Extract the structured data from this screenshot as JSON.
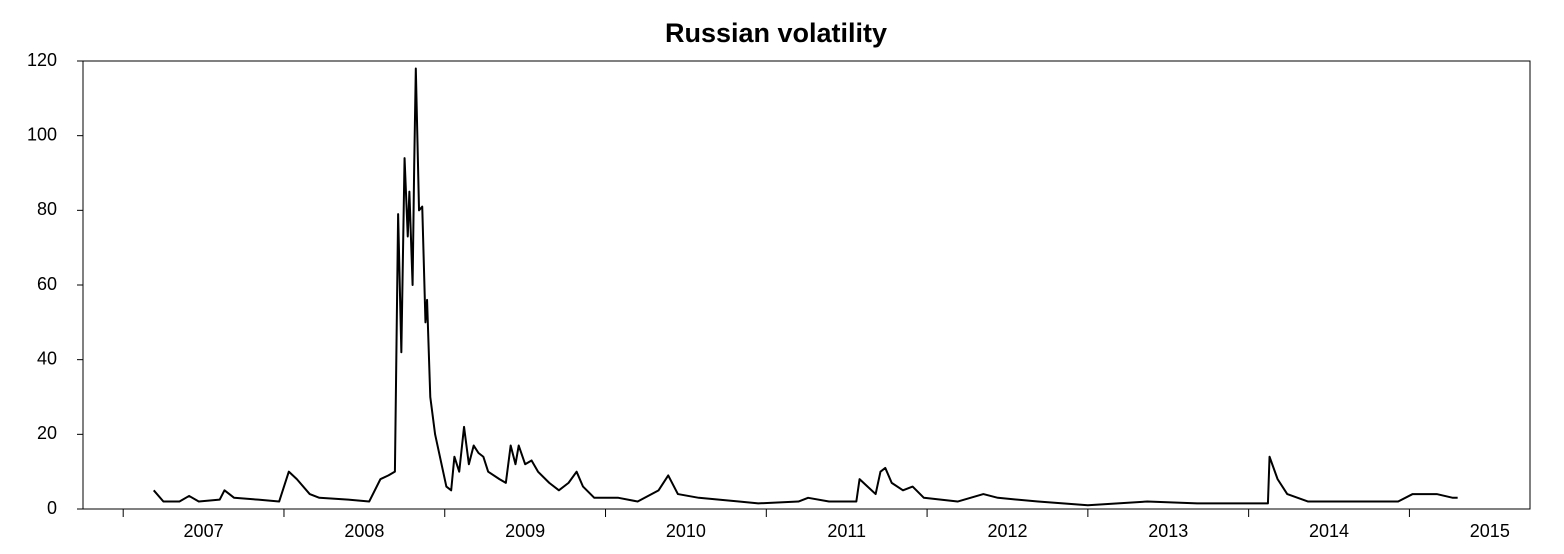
{
  "chart_data": {
    "type": "line",
    "title": "Russian volatility",
    "xlim": [
      2006.75,
      2015.75
    ],
    "xticks": [
      2007,
      2008,
      2009,
      2010,
      2011,
      2012,
      2013,
      2014,
      2015
    ],
    "ylim": [
      0,
      120
    ],
    "yticks": [
      0,
      20,
      40,
      60,
      80,
      100,
      120
    ],
    "grid": false,
    "series": [
      {
        "color": "#000000",
        "x": [
          2007.19,
          2007.25,
          2007.35,
          2007.41,
          2007.47,
          2007.6,
          2007.63,
          2007.69,
          2007.84,
          2007.97,
          2008.03,
          2008.08,
          2008.16,
          2008.22,
          2008.4,
          2008.53,
          2008.6,
          2008.65,
          2008.69,
          2008.71,
          2008.73,
          2008.75,
          2008.77,
          2008.78,
          2008.8,
          2008.81,
          2008.82,
          2008.84,
          2008.86,
          2008.88,
          2008.89,
          2008.91,
          2008.94,
          2008.98,
          2009.01,
          2009.04,
          2009.06,
          2009.09,
          2009.12,
          2009.15,
          2009.18,
          2009.21,
          2009.24,
          2009.27,
          2009.34,
          2009.38,
          2009.41,
          2009.44,
          2009.46,
          2009.5,
          2009.54,
          2009.58,
          2009.65,
          2009.71,
          2009.77,
          2009.82,
          2009.86,
          2009.93,
          2010.08,
          2010.2,
          2010.33,
          2010.39,
          2010.45,
          2010.58,
          2010.83,
          2010.95,
          2011.2,
          2011.26,
          2011.39,
          2011.56,
          2011.58,
          2011.63,
          2011.68,
          2011.71,
          2011.74,
          2011.78,
          2011.85,
          2011.91,
          2011.98,
          2012.19,
          2012.35,
          2012.44,
          2012.69,
          2013.0,
          2013.37,
          2013.68,
          2014.12,
          2014.13,
          2014.18,
          2014.24,
          2014.37,
          2014.61,
          2014.93,
          2015.02,
          2015.08,
          2015.17,
          2015.27,
          2015.3
        ],
        "values": [
          5,
          2,
          2,
          3.5,
          2,
          2.5,
          5,
          3,
          2.5,
          2,
          10,
          8,
          4,
          3,
          2.5,
          2,
          8,
          9,
          10,
          79,
          42,
          94,
          73,
          85,
          60,
          92,
          118,
          80,
          81,
          50,
          56,
          30,
          20,
          12,
          6,
          5,
          14,
          10,
          22,
          12,
          17,
          15,
          14,
          10,
          8,
          7,
          17,
          12,
          17,
          12,
          13,
          10,
          7,
          5,
          7,
          10,
          6,
          3,
          3,
          2,
          5,
          9,
          4,
          3,
          2,
          1.5,
          2,
          3,
          2,
          2,
          8,
          6,
          4,
          10,
          11,
          7,
          5,
          6,
          3,
          2,
          4,
          3,
          2,
          1,
          2,
          1.5,
          1.5,
          14,
          8,
          4,
          2,
          2,
          2,
          4,
          4,
          4,
          3,
          3
        ]
      }
    ]
  }
}
